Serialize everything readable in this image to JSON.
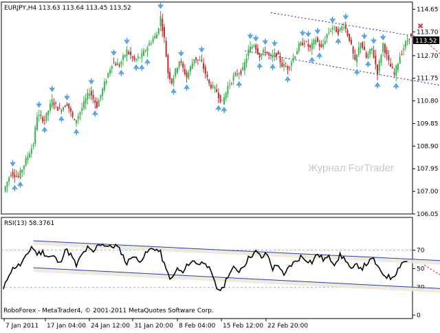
{
  "header": {
    "symbol_line": "EURJPY,H4  113.63 113.64 113.45 113.52"
  },
  "rsi_header": "RSI(13) 58.3761",
  "watermark": "Журнал ForTrader",
  "copyright": "RoboForex - MetaTrader4, © 2001-2011 MetaQuotes Software Corp.",
  "current_price_label": "113.52",
  "colors": {
    "bull": "#37b24d",
    "bear": "#c92a2a",
    "fractal": "#4dabf7",
    "channel": "#1c1cb4",
    "signal": "#e03131",
    "rsi_line": "#000000",
    "rsi_channel": "#1f3fbf"
  },
  "chart_data": [
    {
      "type": "candlestick",
      "symbol": "EURJPY",
      "timeframe": "H4",
      "ohlc_last": {
        "open": 113.63,
        "high": 113.64,
        "low": 113.45,
        "close": 113.52
      },
      "y_ticks": [
        "114.65",
        "113.70",
        "112.70",
        "111.75",
        "110.80",
        "109.85",
        "108.90",
        "107.95",
        "107.00",
        "106.05"
      ],
      "ylim": [
        106.05,
        114.95
      ],
      "x_ticks": [
        "7 Jan 2011",
        "17 Jan 04:00",
        "24 Jan 12:00",
        "31 Jan 20:00",
        "8 Feb 04:00",
        "15 Feb 12:00",
        "22 Feb 20:00"
      ],
      "price_path": [
        [
          0,
          107.0
        ],
        [
          4,
          107.8
        ],
        [
          8,
          107.6
        ],
        [
          12,
          108.3
        ],
        [
          16,
          109.0
        ],
        [
          18,
          110.2
        ],
        [
          22,
          110.0
        ],
        [
          26,
          110.8
        ],
        [
          30,
          110.4
        ],
        [
          34,
          110.7
        ],
        [
          38,
          109.9
        ],
        [
          42,
          110.5
        ],
        [
          46,
          111.2
        ],
        [
          50,
          110.6
        ],
        [
          54,
          111.5
        ],
        [
          58,
          112.4
        ],
        [
          62,
          112.3
        ],
        [
          66,
          112.9
        ],
        [
          70,
          112.5
        ],
        [
          74,
          112.7
        ],
        [
          78,
          113.2
        ],
        [
          82,
          113.6
        ],
        [
          84,
          114.3
        ],
        [
          86,
          113.4
        ],
        [
          88,
          112.0
        ],
        [
          90,
          111.6
        ],
        [
          94,
          112.5
        ],
        [
          98,
          111.8
        ],
        [
          102,
          112.6
        ],
        [
          106,
          112.4
        ],
        [
          110,
          111.5
        ],
        [
          114,
          111.2
        ],
        [
          117,
          110.7
        ],
        [
          120,
          111.4
        ],
        [
          124,
          111.9
        ],
        [
          128,
          112.1
        ],
        [
          131,
          112.9
        ],
        [
          134,
          113.2
        ],
        [
          137,
          112.7
        ],
        [
          140,
          112.9
        ],
        [
          143,
          112.6
        ],
        [
          146,
          112.8
        ],
        [
          149,
          112.3
        ],
        [
          152,
          112.2
        ],
        [
          155,
          112.6
        ],
        [
          158,
          113.1
        ],
        [
          161,
          113.3
        ],
        [
          164,
          113.0
        ],
        [
          167,
          113.4
        ],
        [
          170,
          113.0
        ],
        [
          173,
          113.6
        ],
        [
          176,
          113.9
        ],
        [
          179,
          113.7
        ],
        [
          182,
          114.0
        ],
        [
          185,
          113.4
        ],
        [
          188,
          112.4
        ],
        [
          191,
          113.3
        ],
        [
          194,
          112.6
        ],
        [
          197,
          113.0
        ],
        [
          200,
          112.0
        ],
        [
          203,
          113.2
        ],
        [
          206,
          112.4
        ],
        [
          209,
          111.9
        ],
        [
          212,
          112.7
        ],
        [
          215,
          113.2
        ],
        [
          217,
          113.52
        ]
      ],
      "channel_upper": [
        [
          143,
          114.5
        ],
        [
          292,
          112.6
        ]
      ],
      "channel_lower": [
        [
          129,
          112.9
        ],
        [
          288,
          110.7
        ]
      ],
      "signal": {
        "cross": [
          223,
          113.95
        ],
        "arrow_from": [
          223,
          113.5
        ],
        "arrow_to": [
          245,
          111.9
        ]
      }
    },
    {
      "type": "line",
      "name": "RSI(13)",
      "value": 58.3761,
      "y_ticks": [
        "70",
        "50",
        "30",
        "0"
      ],
      "ylim": [
        0,
        100
      ],
      "levels": [
        30,
        70
      ],
      "rsi_path": [
        [
          0,
          27
        ],
        [
          3,
          45
        ],
        [
          6,
          52
        ],
        [
          9,
          54
        ],
        [
          12,
          62
        ],
        [
          15,
          74
        ],
        [
          18,
          66
        ],
        [
          21,
          68
        ],
        [
          24,
          63
        ],
        [
          27,
          63
        ],
        [
          30,
          55
        ],
        [
          33,
          71
        ],
        [
          36,
          65
        ],
        [
          39,
          53
        ],
        [
          42,
          65
        ],
        [
          45,
          72
        ],
        [
          48,
          67
        ],
        [
          51,
          77
        ],
        [
          54,
          76
        ],
        [
          57,
          73
        ],
        [
          60,
          75
        ],
        [
          63,
          68
        ],
        [
          66,
          55
        ],
        [
          69,
          65
        ],
        [
          72,
          58
        ],
        [
          75,
          63
        ],
        [
          78,
          70
        ],
        [
          81,
          72
        ],
        [
          84,
          67
        ],
        [
          87,
          48
        ],
        [
          90,
          38
        ],
        [
          93,
          50
        ],
        [
          96,
          45
        ],
        [
          99,
          56
        ],
        [
          102,
          58
        ],
        [
          105,
          55
        ],
        [
          108,
          58
        ],
        [
          111,
          45
        ],
        [
          114,
          29
        ],
        [
          117,
          27
        ],
        [
          120,
          43
        ],
        [
          123,
          50
        ],
        [
          126,
          48
        ],
        [
          129,
          55
        ],
        [
          132,
          64
        ],
        [
          135,
          68
        ],
        [
          138,
          62
        ],
        [
          141,
          66
        ],
        [
          144,
          50
        ],
        [
          147,
          55
        ],
        [
          150,
          41
        ],
        [
          153,
          53
        ],
        [
          156,
          57
        ],
        [
          159,
          63
        ],
        [
          162,
          60
        ],
        [
          165,
          57
        ],
        [
          168,
          66
        ],
        [
          171,
          60
        ],
        [
          174,
          62
        ],
        [
          177,
          56
        ],
        [
          180,
          64
        ],
        [
          183,
          60
        ],
        [
          186,
          48
        ],
        [
          189,
          54
        ],
        [
          192,
          51
        ],
        [
          195,
          57
        ],
        [
          198,
          60
        ],
        [
          201,
          48
        ],
        [
          204,
          43
        ],
        [
          207,
          40
        ],
        [
          210,
          46
        ],
        [
          213,
          57
        ],
        [
          216,
          58
        ]
      ],
      "channel_upper": [
        [
          16,
          80
        ],
        [
          292,
          53
        ]
      ],
      "channel_lower": [
        [
          16,
          51
        ],
        [
          288,
          23
        ]
      ],
      "signal_arrow": {
        "from": [
          225,
          54
        ],
        "to": [
          240,
          33
        ]
      }
    }
  ]
}
